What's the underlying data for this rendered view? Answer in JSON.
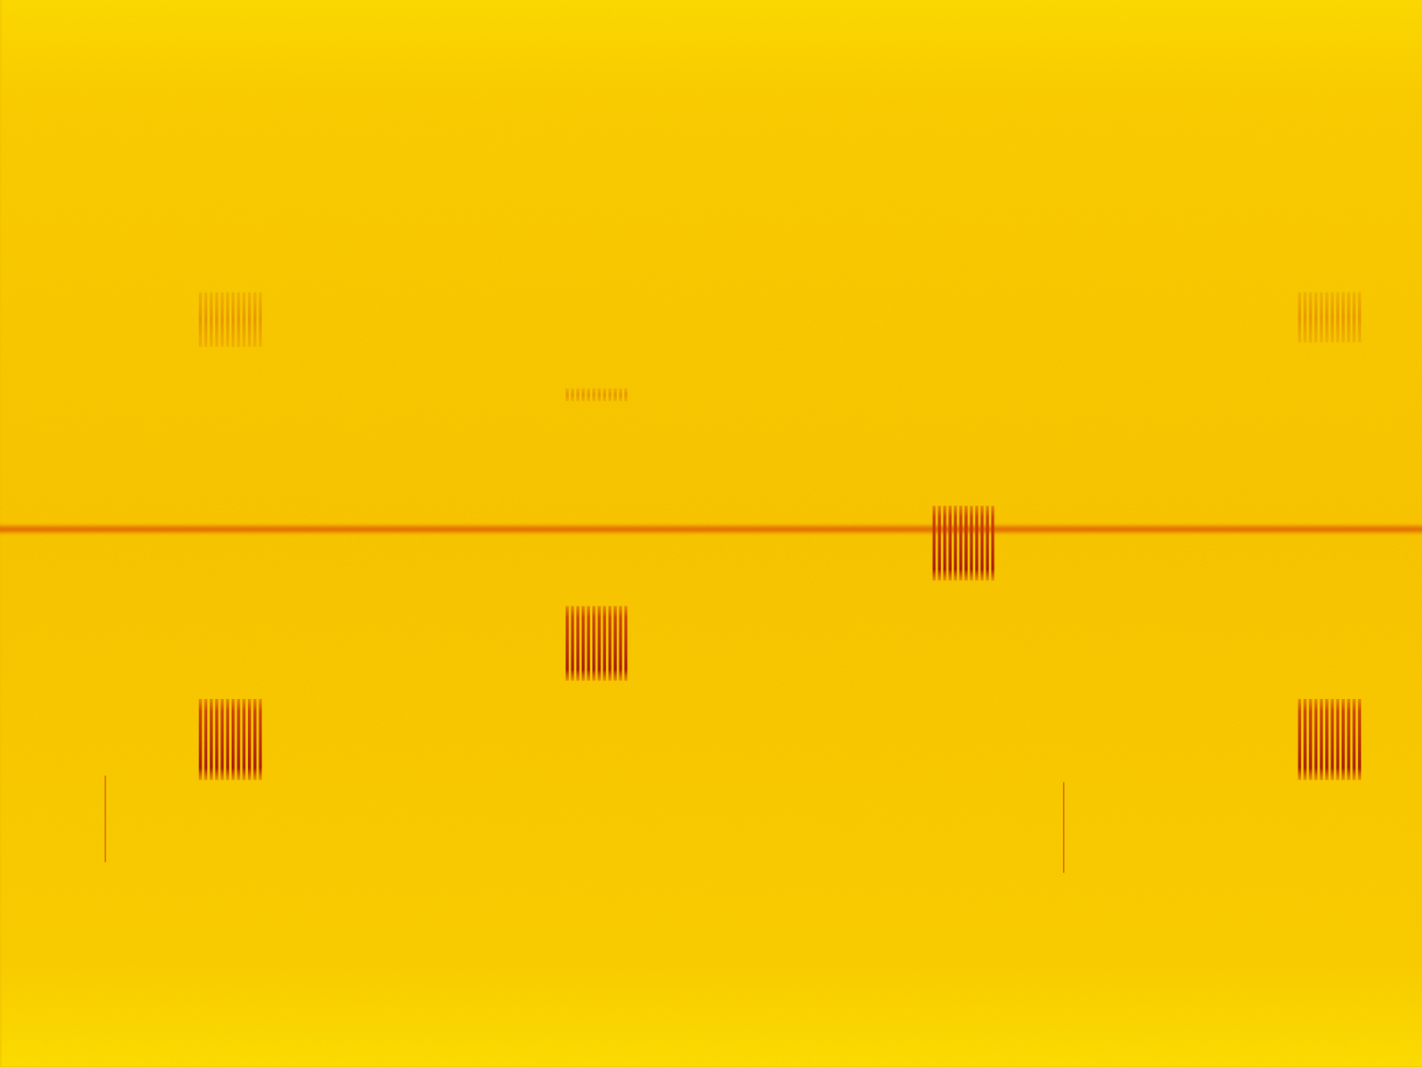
{
  "chart_data": {
    "type": "spectrogram",
    "tick_labels": false,
    "xlim": [
      0,
      100
    ],
    "ylim": [
      0,
      100
    ],
    "carrier": 50.4,
    "bursts": [
      {
        "start": 13.9,
        "end": 18.5,
        "low": 26.9,
        "high": 34.5,
        "stripes": 12
      },
      {
        "start": 39.7,
        "end": 44.2,
        "low": 36.2,
        "high": 43.2,
        "stripes": 12
      },
      {
        "start": 65.5,
        "end": 70.0,
        "low": 45.6,
        "high": 52.6,
        "stripes": 12
      },
      {
        "start": 91.2,
        "end": 95.8,
        "low": 26.9,
        "high": 34.5,
        "stripes": 12
      }
    ],
    "faint_bursts": [
      {
        "start": 13.9,
        "end": 18.5,
        "low": 67.5,
        "high": 72.6,
        "stripes": 12
      },
      {
        "start": 39.7,
        "end": 44.2,
        "low": 62.4,
        "high": 63.6,
        "stripes": 12
      },
      {
        "start": 91.2,
        "end": 95.8,
        "low": 67.9,
        "high": 72.6,
        "stripes": 12
      }
    ],
    "clicks": [
      {
        "x": 7.4,
        "low": 19.2,
        "high": 27.3
      },
      {
        "x": 74.8,
        "low": 18.2,
        "high": 26.7
      }
    ]
  }
}
